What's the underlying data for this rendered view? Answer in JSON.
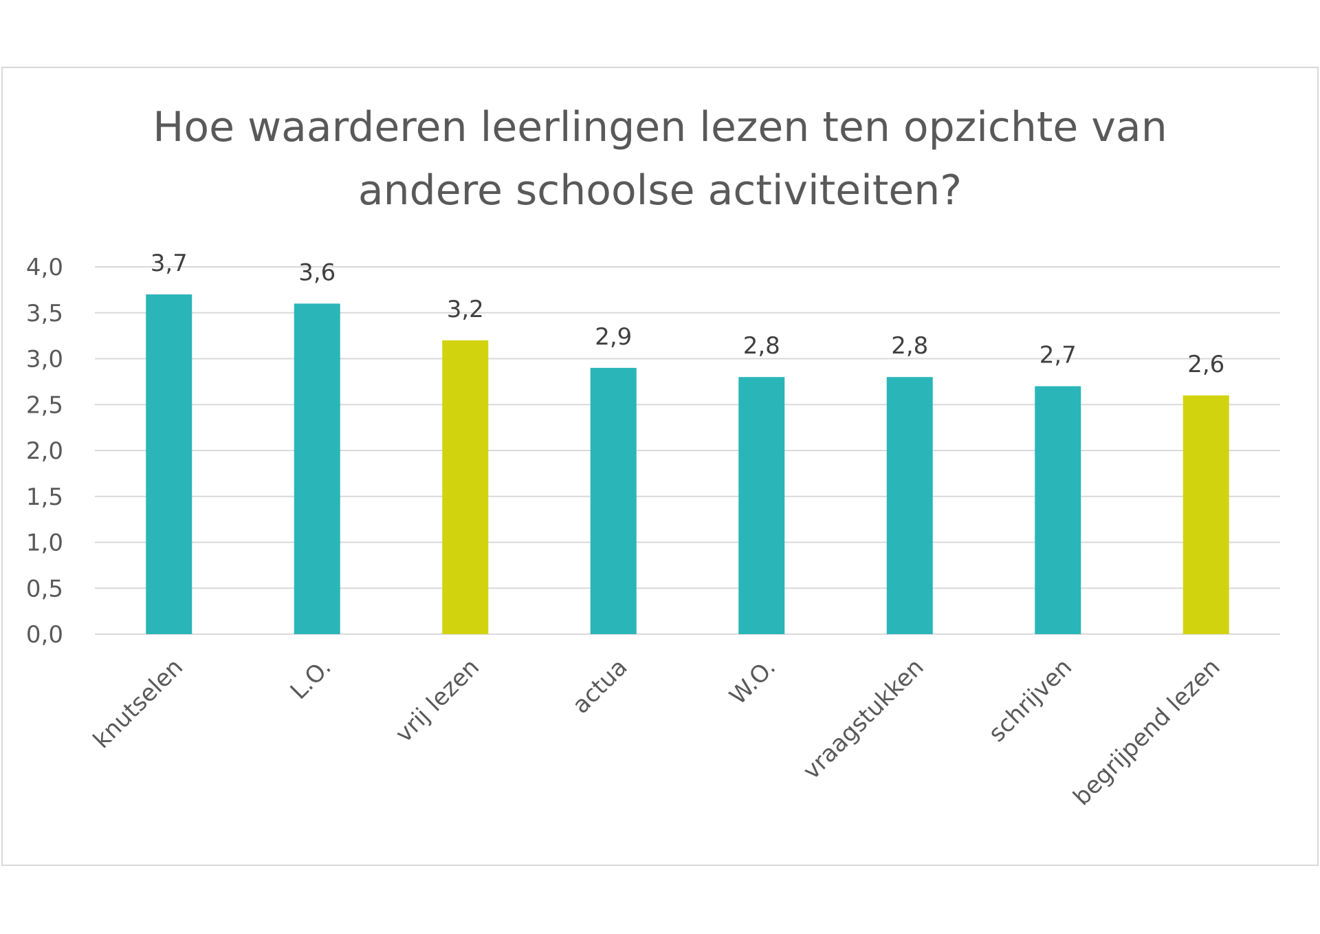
{
  "chart_data": {
    "type": "bar",
    "title_lines": [
      "Hoe waarderen leerlingen  lezen ten opzichte van",
      "andere schoolse activiteiten?"
    ],
    "categories": [
      "knutselen",
      "L.O.",
      "vrij lezen",
      "actua",
      "W.O.",
      "vraagstukken",
      "schrijven",
      "begrijpend lezen"
    ],
    "values": [
      3.7,
      3.6,
      3.2,
      2.9,
      2.8,
      2.8,
      2.7,
      2.6
    ],
    "data_labels": [
      "3,7",
      "3,6",
      "3,2",
      "2,9",
      "2,8",
      "2,8",
      "2,7",
      "2,6"
    ],
    "yticks": [
      "0,0",
      "0,5",
      "1,0",
      "1,5",
      "2,0",
      "2,5",
      "3,0",
      "3,5",
      "4,0"
    ],
    "ylim": [
      0,
      4
    ],
    "ystep": 0.5,
    "grid": true,
    "legend": "none",
    "colors": {
      "default": "#2ab5b9",
      "highlight": "#d2d30f",
      "text": "#595959",
      "grid": "#d9d9d9"
    },
    "highlighted_categories": [
      "vrij lezen",
      "begrijpend lezen"
    ]
  }
}
